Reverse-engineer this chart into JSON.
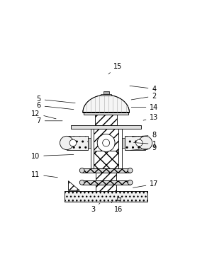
{
  "background_color": "#ffffff",
  "line_color": "#000000",
  "label_positions": {
    "1": {
      "text": [
        0.8,
        0.455
      ],
      "point": [
        0.66,
        0.465
      ]
    },
    "2": {
      "text": [
        0.8,
        0.755
      ],
      "point": [
        0.645,
        0.73
      ]
    },
    "3": {
      "text": [
        0.42,
        0.045
      ],
      "point": [
        0.47,
        0.095
      ]
    },
    "4": {
      "text": [
        0.8,
        0.8
      ],
      "point": [
        0.635,
        0.82
      ]
    },
    "5": {
      "text": [
        0.08,
        0.735
      ],
      "point": [
        0.32,
        0.71
      ]
    },
    "6": {
      "text": [
        0.08,
        0.695
      ],
      "point": [
        0.31,
        0.67
      ]
    },
    "7": {
      "text": [
        0.08,
        0.6
      ],
      "point": [
        0.24,
        0.6
      ]
    },
    "8": {
      "text": [
        0.8,
        0.51
      ],
      "point": [
        0.65,
        0.5
      ]
    },
    "9": {
      "text": [
        0.8,
        0.43
      ],
      "point": [
        0.64,
        0.415
      ]
    },
    "10": {
      "text": [
        0.06,
        0.38
      ],
      "point": [
        0.31,
        0.39
      ]
    },
    "11": {
      "text": [
        0.06,
        0.265
      ],
      "point": [
        0.21,
        0.245
      ]
    },
    "12": {
      "text": [
        0.06,
        0.645
      ],
      "point": [
        0.2,
        0.61
      ]
    },
    "13": {
      "text": [
        0.8,
        0.62
      ],
      "point": [
        0.72,
        0.6
      ]
    },
    "14": {
      "text": [
        0.8,
        0.685
      ],
      "point": [
        0.645,
        0.685
      ]
    },
    "15": {
      "text": [
        0.575,
        0.94
      ],
      "point": [
        0.505,
        0.885
      ]
    },
    "16": {
      "text": [
        0.575,
        0.045
      ],
      "point": [
        0.53,
        0.095
      ]
    },
    "17": {
      "text": [
        0.8,
        0.205
      ],
      "point": [
        0.655,
        0.18
      ]
    }
  }
}
